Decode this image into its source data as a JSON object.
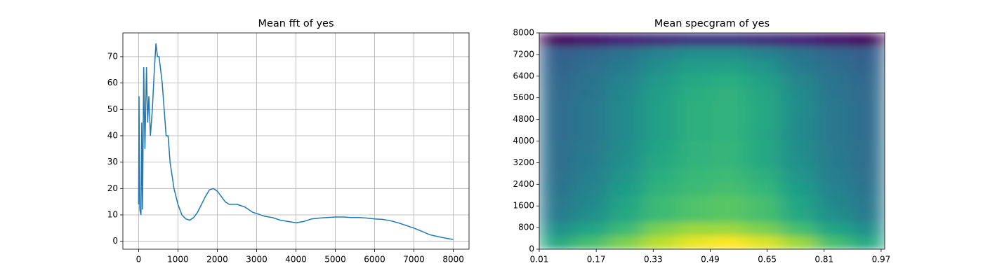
{
  "chart_data": [
    {
      "type": "line",
      "title": "Mean fft of yes",
      "color": "#1f77b4",
      "grid": true,
      "x": [
        0,
        10,
        30,
        60,
        80,
        100,
        130,
        160,
        200,
        230,
        260,
        300,
        350,
        400,
        440,
        480,
        520,
        560,
        600,
        650,
        700,
        750,
        800,
        850,
        900,
        1000,
        1100,
        1200,
        1300,
        1400,
        1500,
        1600,
        1700,
        1800,
        1900,
        2000,
        2100,
        2200,
        2300,
        2500,
        2700,
        2900,
        3000,
        3200,
        3400,
        3600,
        3800,
        4000,
        4200,
        4400,
        4600,
        4800,
        5000,
        5200,
        5400,
        5600,
        5800,
        6000,
        6200,
        6400,
        6600,
        6800,
        7000,
        7200,
        7400,
        7600,
        7800,
        8000
      ],
      "values": [
        14,
        55,
        12,
        10,
        45,
        12,
        66,
        35,
        66,
        45,
        55,
        40,
        50,
        65,
        75,
        70,
        70,
        65,
        60,
        50,
        40,
        40,
        30,
        25,
        20,
        14,
        10,
        8.5,
        8,
        9,
        11,
        14,
        17,
        19.5,
        20,
        19,
        17,
        15,
        14,
        14,
        13,
        11,
        10.5,
        9.5,
        9,
        8,
        7.5,
        7,
        7.5,
        8.5,
        8.8,
        9,
        9.2,
        9.2,
        9,
        9,
        8.8,
        8.5,
        8.3,
        7.8,
        7,
        6,
        5,
        3.8,
        2.5,
        1.8,
        1.2,
        0.7
      ],
      "xlim": [
        -400,
        8400
      ],
      "xticks": [
        0,
        1000,
        2000,
        3000,
        4000,
        5000,
        6000,
        7000,
        8000
      ],
      "ylim": [
        -3,
        79
      ],
      "yticks": [
        0,
        10,
        20,
        30,
        40,
        50,
        60,
        70
      ]
    },
    {
      "type": "heatmap",
      "title": "Mean specgram of yes",
      "colormap": "viridis",
      "grid": false,
      "xlim": [
        0.01,
        0.98
      ],
      "xticks": [
        0.01,
        0.17,
        0.33,
        0.49,
        0.65,
        0.81,
        0.97
      ],
      "ylim": [
        0,
        8000
      ],
      "yticks": [
        0,
        800,
        1600,
        2400,
        3200,
        4000,
        4800,
        5600,
        6400,
        7200,
        8000
      ],
      "z": [
        [
          0.6,
          0.7,
          0.8,
          0.9,
          0.97,
          1.0,
          0.95,
          0.85,
          0.7,
          0.6
        ],
        [
          0.5,
          0.58,
          0.68,
          0.8,
          0.85,
          0.85,
          0.8,
          0.7,
          0.58,
          0.5
        ],
        [
          0.42,
          0.5,
          0.6,
          0.68,
          0.72,
          0.74,
          0.7,
          0.6,
          0.5,
          0.42
        ],
        [
          0.4,
          0.47,
          0.58,
          0.68,
          0.72,
          0.74,
          0.7,
          0.58,
          0.47,
          0.4
        ],
        [
          0.38,
          0.45,
          0.55,
          0.64,
          0.68,
          0.7,
          0.66,
          0.55,
          0.45,
          0.38
        ],
        [
          0.37,
          0.43,
          0.52,
          0.62,
          0.67,
          0.68,
          0.63,
          0.52,
          0.43,
          0.37
        ],
        [
          0.36,
          0.42,
          0.5,
          0.6,
          0.65,
          0.66,
          0.6,
          0.5,
          0.42,
          0.36
        ],
        [
          0.36,
          0.41,
          0.49,
          0.58,
          0.64,
          0.66,
          0.6,
          0.49,
          0.41,
          0.36
        ],
        [
          0.35,
          0.4,
          0.48,
          0.57,
          0.63,
          0.65,
          0.59,
          0.48,
          0.4,
          0.35
        ],
        [
          0.35,
          0.4,
          0.48,
          0.57,
          0.63,
          0.65,
          0.6,
          0.48,
          0.4,
          0.35
        ],
        [
          0.35,
          0.4,
          0.48,
          0.57,
          0.63,
          0.65,
          0.6,
          0.49,
          0.4,
          0.35
        ],
        [
          0.34,
          0.39,
          0.47,
          0.56,
          0.62,
          0.64,
          0.59,
          0.48,
          0.39,
          0.34
        ],
        [
          0.33,
          0.38,
          0.45,
          0.54,
          0.6,
          0.62,
          0.57,
          0.46,
          0.38,
          0.33
        ],
        [
          0.32,
          0.36,
          0.42,
          0.5,
          0.56,
          0.57,
          0.52,
          0.42,
          0.36,
          0.32
        ],
        [
          0.3,
          0.33,
          0.38,
          0.45,
          0.5,
          0.5,
          0.45,
          0.38,
          0.33,
          0.3
        ],
        [
          0.05,
          0.08,
          0.12,
          0.15,
          0.18,
          0.18,
          0.15,
          0.12,
          0.08,
          0.05
        ]
      ]
    }
  ]
}
